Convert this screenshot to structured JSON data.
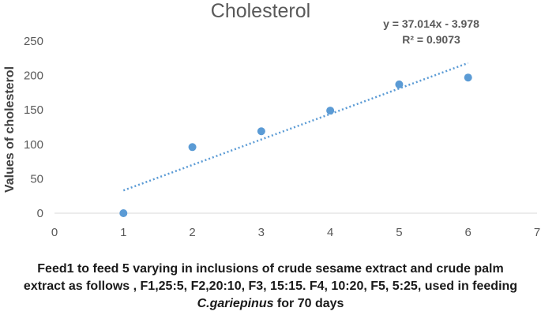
{
  "chart_data": {
    "type": "scatter",
    "title": "Cholesterol",
    "ylabel": "Values of cholesterol",
    "xlim": [
      0,
      7
    ],
    "ylim": [
      0,
      250
    ],
    "xticks": [
      0,
      1,
      2,
      3,
      4,
      5,
      6,
      7
    ],
    "yticks": [
      0,
      50,
      100,
      150,
      200,
      250
    ],
    "series": [
      {
        "name": "Cholesterol",
        "x": [
          1,
          2,
          3,
          4,
          5,
          6
        ],
        "y": [
          0,
          96,
          119,
          149,
          187,
          197
        ],
        "color": "#5b9bd5"
      }
    ],
    "trendline": {
      "type": "linear",
      "slope": 37.014,
      "intercept": -3.978,
      "x_range": [
        1,
        6
      ],
      "style": "dotted",
      "color": "#5b9bd5",
      "equation_label": "y = 37.014x - 3.978",
      "r2_label": "R² = 0.9073"
    },
    "xlabel": {
      "part1": "Feed1 to feed 5 varying in inclusions of crude sesame extract and crude palm extract as follows , F1,25:5, F2,20:10, F3, 15:15. F4, 10:20, F5, 5:25, used in feeding ",
      "italic": "C.gariepinus",
      "part2": " for 70 days"
    }
  }
}
